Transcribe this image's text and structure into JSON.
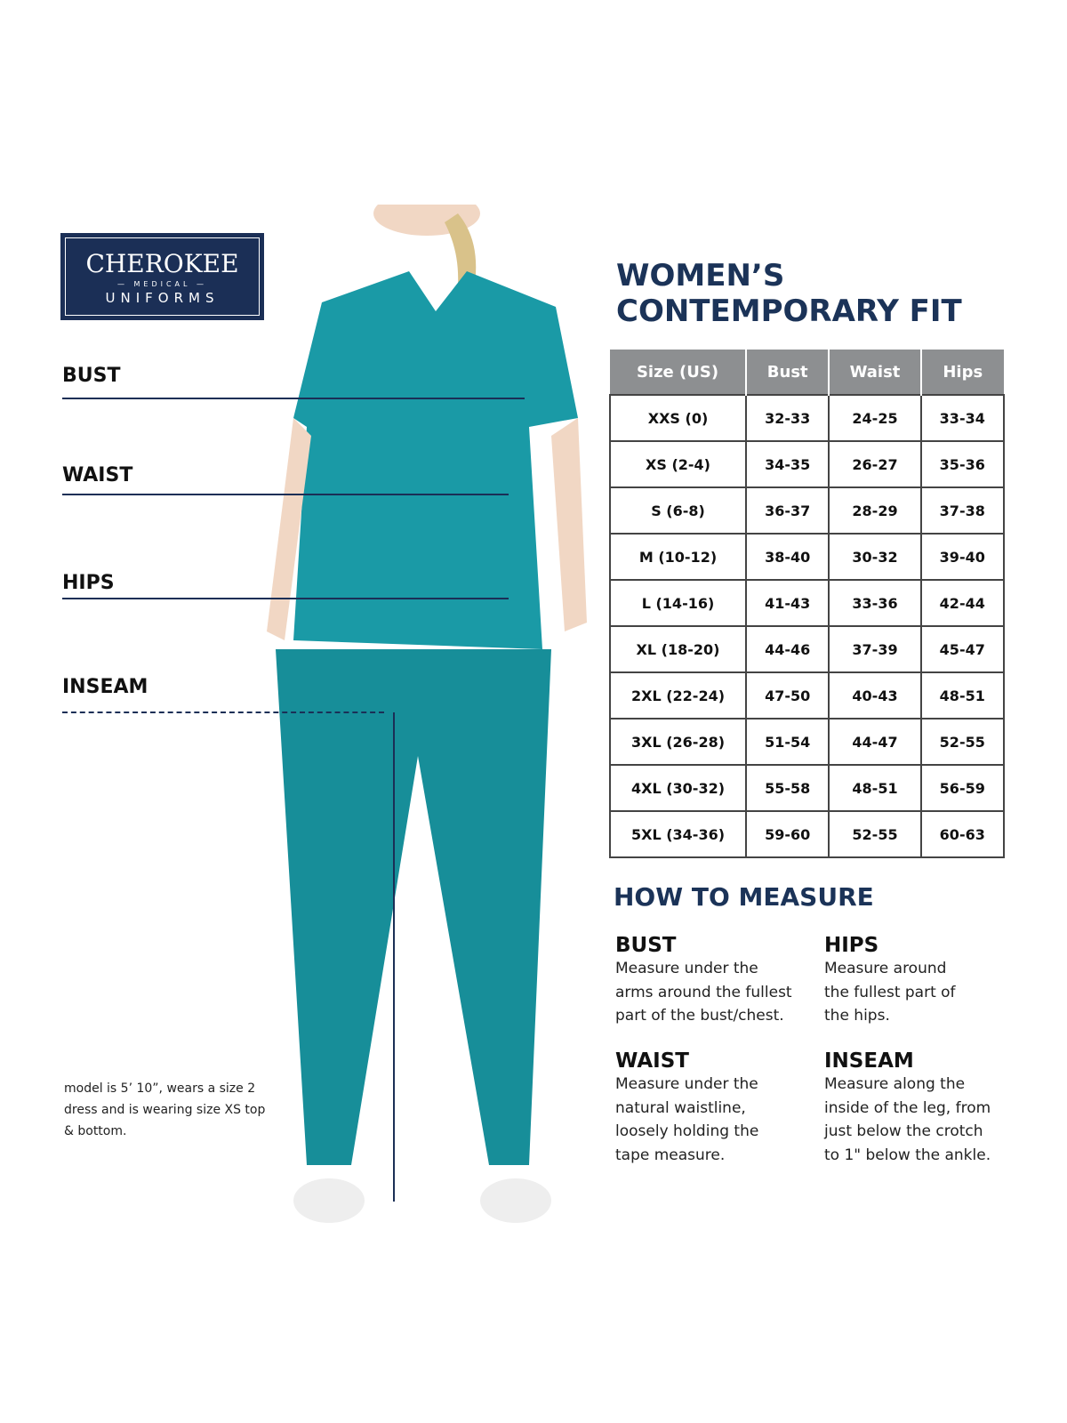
{
  "logo": {
    "brand": "CHEROKEE",
    "sub": "— MEDICAL —",
    "sub2": "UNIFORMS"
  },
  "labels": {
    "bust": "BUST",
    "waist": "WAIST",
    "hips": "HIPS",
    "inseam": "INSEAM"
  },
  "title": {
    "line1": "WOMEN’S",
    "line2": "CONTEMPORARY FIT"
  },
  "table": {
    "headers": [
      "Size (US)",
      "Bust",
      "Waist",
      "Hips"
    ],
    "rows": [
      [
        "XXS (0)",
        "32-33",
        "24-25",
        "33-34"
      ],
      [
        "XS (2-4)",
        "34-35",
        "26-27",
        "35-36"
      ],
      [
        "S (6-8)",
        "36-37",
        "28-29",
        "37-38"
      ],
      [
        "M (10-12)",
        "38-40",
        "30-32",
        "39-40"
      ],
      [
        "L (14-16)",
        "41-43",
        "33-36",
        "42-44"
      ],
      [
        "XL (18-20)",
        "44-46",
        "37-39",
        "45-47"
      ],
      [
        "2XL (22-24)",
        "47-50",
        "40-43",
        "48-51"
      ],
      [
        "3XL (26-28)",
        "51-54",
        "44-47",
        "52-55"
      ],
      [
        "4XL (30-32)",
        "55-58",
        "48-51",
        "56-59"
      ],
      [
        "5XL (34-36)",
        "59-60",
        "52-55",
        "60-63"
      ]
    ]
  },
  "how_to": {
    "title": "HOW TO MEASURE",
    "bust": {
      "heading": "BUST",
      "text": "Measure under the arms around the fullest part of the bust/chest."
    },
    "hips": {
      "heading": "HIPS",
      "text": "Measure around the fullest part of the hips."
    },
    "waist": {
      "heading": "WAIST",
      "text": "Measure under the natural waistline, loosely holding the tape measure."
    },
    "inseam": {
      "heading": "INSEAM",
      "text": "Measure along the inside of the leg, from just below the crotch to 1\" below the ankle."
    }
  },
  "note": "model is 5’ 10”, wears a size 2 dress and is wearing size XS top & bottom.",
  "colors": {
    "navy": "#1b2f56",
    "teal": "#1a9aa6",
    "header_gray": "#8d8f91"
  }
}
